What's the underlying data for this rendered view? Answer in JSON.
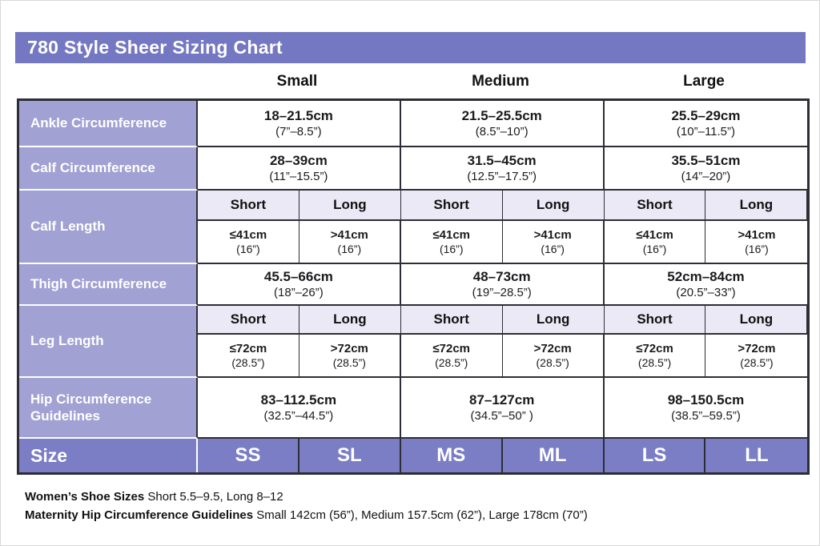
{
  "page": {
    "title": "780 Style Sheer Sizing Chart"
  },
  "colors": {
    "title_bg": "#7477c1",
    "row_label_bg": "#a1a1d3",
    "size_row_bg": "#7b7dc5",
    "subheader_bg": "#ebe9f5",
    "border": "#2d2d36"
  },
  "size_headers": [
    "Small",
    "Medium",
    "Large"
  ],
  "table": {
    "rows": {
      "ankle": {
        "label": "Ankle Circumference",
        "values": [
          {
            "cm": "18–21.5cm",
            "in": "(7”–8.5”)"
          },
          {
            "cm": "21.5–25.5cm",
            "in": "(8.5”–10”)"
          },
          {
            "cm": "25.5–29cm",
            "in": "(10”–11.5”)"
          }
        ]
      },
      "calf_circumference": {
        "label": "Calf Circumference",
        "values": [
          {
            "cm": "28–39cm",
            "in": "(11”–15.5”)"
          },
          {
            "cm": "31.5–45cm",
            "in": "(12.5”–17.5”)"
          },
          {
            "cm": "35.5–51cm",
            "in": "(14”–20”)"
          }
        ]
      },
      "calf_length": {
        "label": "Calf Length",
        "subheaders": [
          "Short",
          "Long",
          "Short",
          "Long",
          "Short",
          "Long"
        ],
        "values": [
          {
            "cm": "≤41cm",
            "in": "(16”)"
          },
          {
            "cm": ">41cm",
            "in": "(16”)"
          },
          {
            "cm": "≤41cm",
            "in": "(16”)"
          },
          {
            "cm": ">41cm",
            "in": "(16”)"
          },
          {
            "cm": "≤41cm",
            "in": "(16”)"
          },
          {
            "cm": ">41cm",
            "in": "(16”)"
          }
        ]
      },
      "thigh": {
        "label": "Thigh Circumference",
        "values": [
          {
            "cm": "45.5–66cm",
            "in": "(18”–26”)"
          },
          {
            "cm": "48–73cm",
            "in": "(19”–28.5”)"
          },
          {
            "cm": "52cm–84cm",
            "in": "(20.5”–33”)"
          }
        ]
      },
      "leg_length": {
        "label": "Leg Length",
        "subheaders": [
          "Short",
          "Long",
          "Short",
          "Long",
          "Short",
          "Long"
        ],
        "values": [
          {
            "cm": "≤72cm",
            "in": "(28.5”)"
          },
          {
            "cm": ">72cm",
            "in": "(28.5”)"
          },
          {
            "cm": "≤72cm",
            "in": "(28.5”)"
          },
          {
            "cm": ">72cm",
            "in": "(28.5”)"
          },
          {
            "cm": "≤72cm",
            "in": "(28.5”)"
          },
          {
            "cm": ">72cm",
            "in": "(28.5”)"
          }
        ]
      },
      "hip": {
        "label": "Hip Circumference Guidelines",
        "values": [
          {
            "cm": "83–112.5cm",
            "in": "(32.5”–44.5”)"
          },
          {
            "cm": "87–127cm",
            "in": "(34.5”–50” )"
          },
          {
            "cm": "98–150.5cm",
            "in": "(38.5”–59.5”)"
          }
        ]
      },
      "size": {
        "label": "Size",
        "values": [
          "SS",
          "SL",
          "MS",
          "ML",
          "LS",
          "LL"
        ]
      }
    }
  },
  "footer": {
    "shoe_sizes_label": "Women’s Shoe Sizes",
    "shoe_sizes_text": " Short 5.5–9.5, Long  8–12",
    "maternity_label": "Maternity Hip Circumference Guidelines",
    "maternity_text": " Small 142cm (56”), Medium 157.5cm (62”), Large 178cm (70”)"
  }
}
